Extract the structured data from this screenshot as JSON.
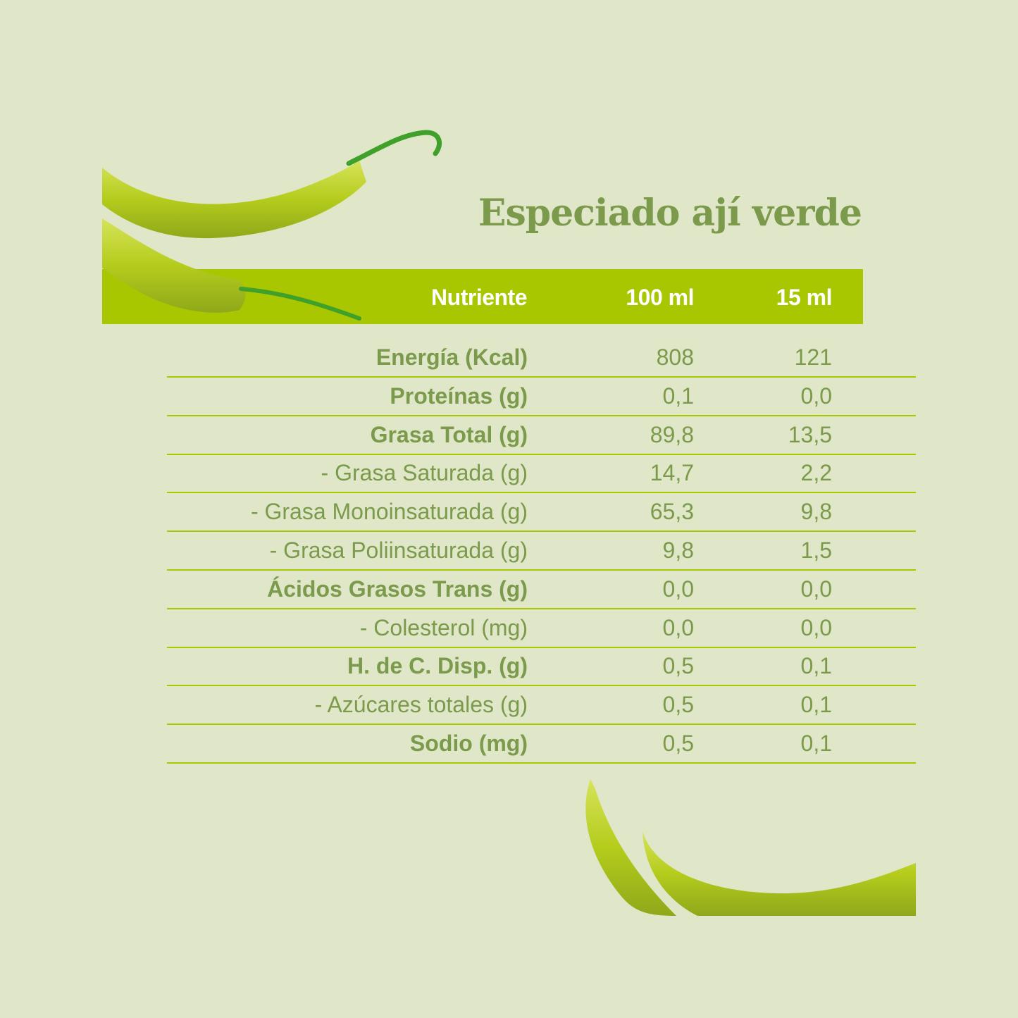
{
  "title": "Especiado ají verde",
  "header": {
    "nutrient": "Nutriente",
    "col_100": "100 ml",
    "col_15": "15 ml"
  },
  "colors": {
    "background": "#dfe7c8",
    "accent": "#a8c700",
    "text": "#7c9a4b"
  },
  "rows": [
    {
      "label": "Energía (Kcal)",
      "v100": "808",
      "v15": "121",
      "bold": true
    },
    {
      "label": "Proteínas (g)",
      "v100": "0,1",
      "v15": "0,0",
      "bold": true
    },
    {
      "label": "Grasa Total (g)",
      "v100": "89,8",
      "v15": "13,5",
      "bold": true
    },
    {
      "label": "- Grasa Saturada (g)",
      "v100": "14,7",
      "v15": "2,2",
      "bold": false
    },
    {
      "label": "- Grasa Monoinsaturada (g)",
      "v100": "65,3",
      "v15": "9,8",
      "bold": false
    },
    {
      "label": "- Grasa Poliinsaturada (g)",
      "v100": "9,8",
      "v15": "1,5",
      "bold": false
    },
    {
      "label": "Ácidos Grasos Trans (g)",
      "v100": "0,0",
      "v15": "0,0",
      "bold": true
    },
    {
      "label": "- Colesterol (mg)",
      "v100": "0,0",
      "v15": "0,0",
      "bold": false
    },
    {
      "label": "H. de C. Disp. (g)",
      "v100": "0,5",
      "v15": "0,1",
      "bold": true
    },
    {
      "label": "- Azúcares totales (g)",
      "v100": "0,5",
      "v15": "0,1",
      "bold": false
    },
    {
      "label": "Sodio (mg)",
      "v100": "0,5",
      "v15": "0,1",
      "bold": true
    }
  ]
}
